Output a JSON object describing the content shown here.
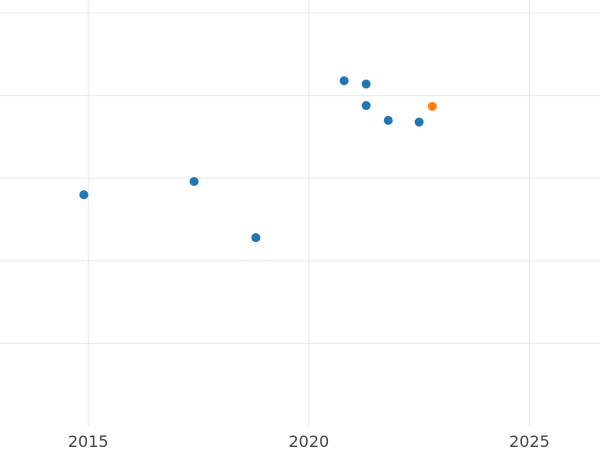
{
  "chart_data": {
    "type": "scatter",
    "x_ticks": [
      2015,
      2020,
      2025
    ],
    "x_tick_labels": [
      "2015",
      "2020",
      "2025"
    ],
    "xlim": [
      2013.0,
      2026.6
    ],
    "ylim": [
      0,
      100
    ],
    "y_gridlines": [
      20,
      40,
      60,
      80,
      100
    ],
    "grid": true,
    "series": [
      {
        "color": "#1f77b4",
        "points": [
          {
            "x": 2014.9,
            "y": 56.0
          },
          {
            "x": 2017.4,
            "y": 59.2
          },
          {
            "x": 2018.8,
            "y": 45.6
          },
          {
            "x": 2020.8,
            "y": 83.6
          },
          {
            "x": 2021.3,
            "y": 82.8
          },
          {
            "x": 2021.3,
            "y": 77.6
          },
          {
            "x": 2021.8,
            "y": 74.0
          },
          {
            "x": 2022.5,
            "y": 73.6
          }
        ]
      },
      {
        "color": "#ff7f0e",
        "points": [
          {
            "x": 2022.8,
            "y": 77.4
          }
        ]
      }
    ]
  }
}
